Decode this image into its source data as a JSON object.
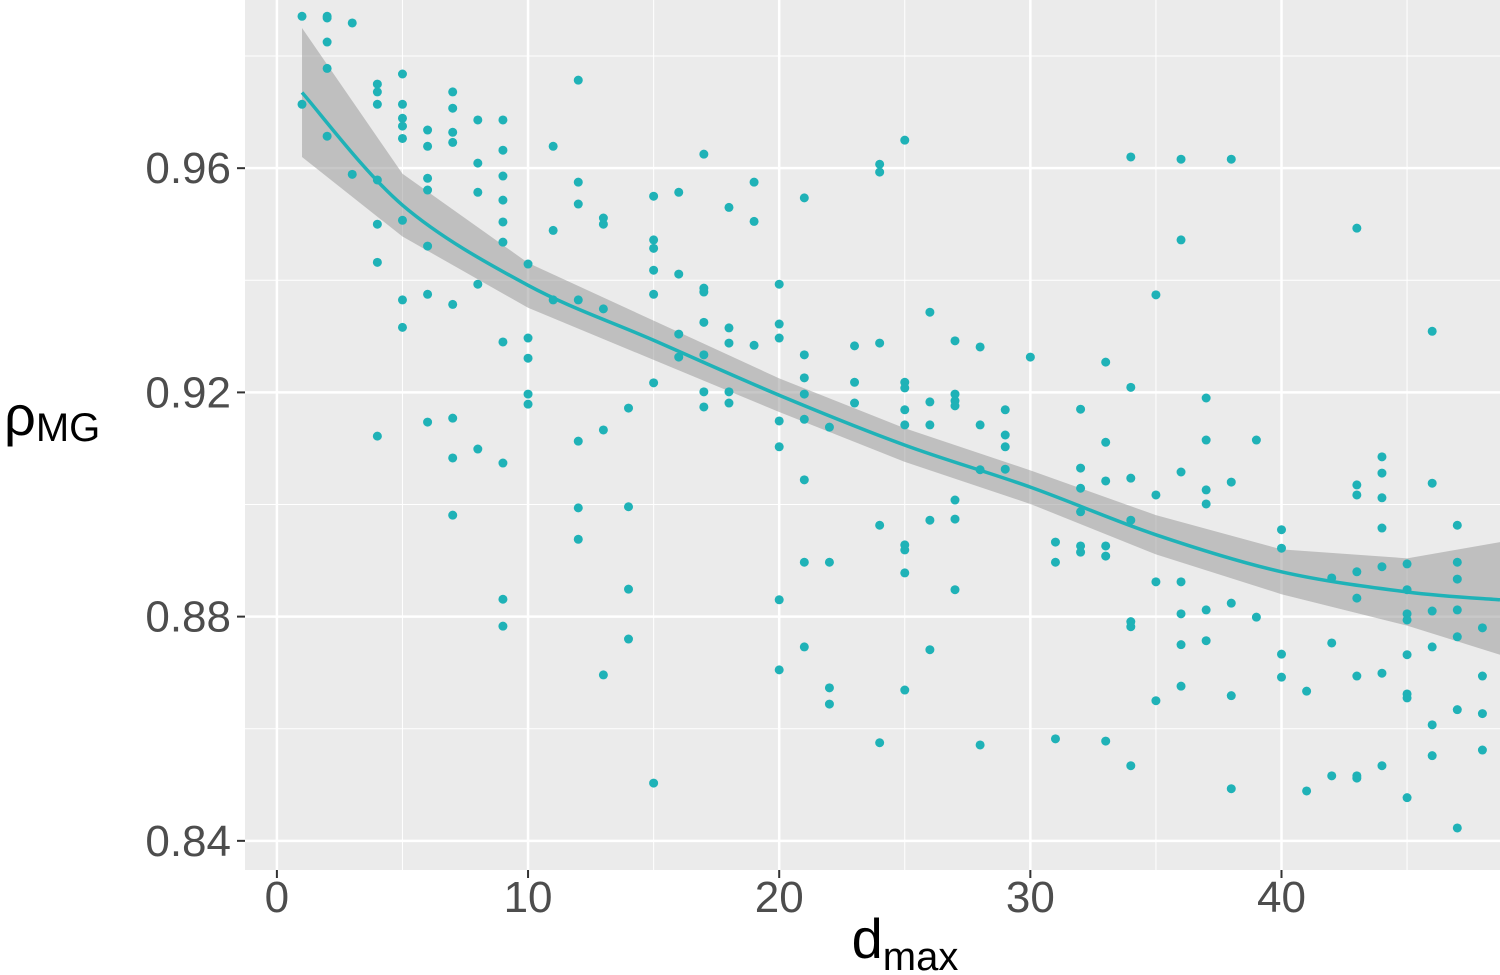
{
  "chart_data": {
    "type": "scatter",
    "x_label": {
      "main": "d",
      "sub": "max"
    },
    "y_label": {
      "main": "ρ",
      "sub": "MG"
    },
    "xlim": [
      -1.27,
      48.7
    ],
    "ylim": [
      0.8348,
      0.99
    ],
    "xticks": [
      0,
      10,
      20,
      30,
      40
    ],
    "yticks": [
      0.84,
      0.88,
      0.92,
      0.96
    ],
    "x_minor_ticks": [
      5,
      15,
      25,
      35,
      45
    ],
    "y_minor_ticks": [
      0.86,
      0.9,
      0.94,
      0.98
    ],
    "grid": true,
    "color": "#1fb2b7",
    "band_color": "#9a9a9a",
    "points": {
      "x": [
        1,
        1,
        2,
        2,
        2,
        2,
        2,
        3,
        3,
        4,
        4,
        4,
        4,
        4,
        4,
        4,
        5,
        5,
        5,
        5,
        5,
        5,
        5,
        5,
        6,
        6,
        6,
        6,
        6,
        6,
        6,
        7,
        7,
        7,
        7,
        7,
        7,
        7,
        7,
        8,
        8,
        8,
        8,
        8,
        9,
        9,
        9,
        9,
        9,
        9,
        9,
        9,
        9,
        9,
        10,
        10,
        10,
        10,
        10,
        11,
        11,
        11,
        12,
        12,
        12,
        12,
        12,
        12,
        12,
        13,
        13,
        13,
        13,
        13,
        14,
        14,
        14,
        14,
        15,
        15,
        15,
        15,
        15,
        15,
        15,
        16,
        16,
        16,
        16,
        17,
        17,
        17,
        17,
        17,
        17,
        17,
        18,
        18,
        18,
        18,
        18,
        19,
        19,
        19,
        20,
        20,
        20,
        20,
        20,
        20,
        20,
        21,
        21,
        21,
        21,
        21,
        21,
        21,
        21,
        22,
        22,
        22,
        22,
        23,
        23,
        23,
        24,
        24,
        24,
        24,
        24,
        25,
        25,
        25,
        25,
        25,
        25,
        25,
        25,
        25,
        26,
        26,
        26,
        26,
        26,
        27,
        27,
        27,
        27,
        27,
        27,
        27,
        28,
        28,
        28,
        28,
        29,
        29,
        29,
        29,
        30,
        31,
        31,
        31,
        32,
        32,
        32,
        32,
        32,
        32,
        33,
        33,
        33,
        33,
        33,
        33,
        34,
        34,
        34,
        34,
        34,
        34,
        34,
        35,
        35,
        35,
        35,
        36,
        36,
        36,
        36,
        36,
        36,
        36,
        37,
        37,
        37,
        37,
        37,
        37,
        38,
        38,
        38,
        38,
        38,
        39,
        39,
        40,
        40,
        40,
        40,
        41,
        41,
        42,
        42,
        42,
        43,
        43,
        43,
        43,
        43,
        43,
        43,
        43,
        44,
        44,
        44,
        44,
        44,
        44,
        44,
        45,
        45,
        45,
        45,
        45,
        45,
        45,
        45,
        46,
        46,
        46,
        46,
        46,
        46,
        47,
        47,
        47,
        47,
        47,
        47,
        47,
        48,
        48,
        48,
        48
      ],
      "values": [
        0.9871,
        0.9714,
        0.9871,
        0.9868,
        0.9825,
        0.9778,
        0.9657,
        0.9859,
        0.9589,
        0.975,
        0.9736,
        0.9714,
        0.9579,
        0.95,
        0.9432,
        0.9122,
        0.9768,
        0.9714,
        0.9689,
        0.9675,
        0.9653,
        0.9507,
        0.9365,
        0.9316,
        0.9668,
        0.9639,
        0.9582,
        0.9561,
        0.9461,
        0.9375,
        0.9147,
        0.9736,
        0.9707,
        0.9664,
        0.9646,
        0.9357,
        0.9154,
        0.9083,
        0.8981,
        0.9686,
        0.9609,
        0.9557,
        0.9393,
        0.9099,
        0.9686,
        0.9632,
        0.9586,
        0.9543,
        0.9504,
        0.9468,
        0.929,
        0.9074,
        0.8831,
        0.8783,
        0.9429,
        0.9297,
        0.9261,
        0.9197,
        0.9179,
        0.9639,
        0.9489,
        0.9365,
        0.9757,
        0.9575,
        0.9536,
        0.9365,
        0.9113,
        0.8994,
        0.8938,
        0.9511,
        0.95,
        0.9349,
        0.9133,
        0.8696,
        0.9172,
        0.8996,
        0.8849,
        0.876,
        0.955,
        0.9472,
        0.9457,
        0.9418,
        0.9375,
        0.9217,
        0.8503,
        0.9557,
        0.9411,
        0.9304,
        0.9263,
        0.9625,
        0.9386,
        0.9379,
        0.9325,
        0.9267,
        0.9201,
        0.9174,
        0.953,
        0.9315,
        0.9288,
        0.9201,
        0.9181,
        0.9575,
        0.9505,
        0.9284,
        0.9393,
        0.9322,
        0.9297,
        0.9149,
        0.9103,
        0.883,
        0.8705,
        0.9547,
        0.9267,
        0.9226,
        0.9197,
        0.9152,
        0.9044,
        0.8897,
        0.8746,
        0.9138,
        0.8897,
        0.8673,
        0.8644,
        0.9283,
        0.9218,
        0.9181,
        0.9607,
        0.9593,
        0.9288,
        0.8963,
        0.8575,
        0.965,
        0.9218,
        0.9208,
        0.9169,
        0.9142,
        0.8928,
        0.8919,
        0.8878,
        0.8669,
        0.9343,
        0.9183,
        0.9142,
        0.8972,
        0.8741,
        0.9292,
        0.9197,
        0.9185,
        0.9176,
        0.9008,
        0.8974,
        0.8848,
        0.9281,
        0.9142,
        0.9062,
        0.8571,
        0.9169,
        0.9124,
        0.9103,
        0.9063,
        0.9263,
        0.8933,
        0.8897,
        0.8582,
        0.917,
        0.9065,
        0.9029,
        0.8987,
        0.8926,
        0.8915,
        0.9254,
        0.9111,
        0.9042,
        0.8926,
        0.8908,
        0.8578,
        0.962,
        0.9209,
        0.9047,
        0.8972,
        0.8791,
        0.8782,
        0.8534,
        0.9374,
        0.9017,
        0.8862,
        0.865,
        0.9616,
        0.9472,
        0.9058,
        0.8862,
        0.8805,
        0.875,
        0.8676,
        0.919,
        0.9115,
        0.9026,
        0.9001,
        0.8812,
        0.8757,
        0.9616,
        0.904,
        0.8824,
        0.8659,
        0.8493,
        0.9115,
        0.8799,
        0.8955,
        0.8922,
        0.8733,
        0.8692,
        0.8667,
        0.8489,
        0.8869,
        0.8753,
        0.8516,
        0.9493,
        0.9035,
        0.9017,
        0.888,
        0.8833,
        0.8694,
        0.8516,
        0.8512,
        0.9085,
        0.9056,
        0.9012,
        0.8958,
        0.8889,
        0.8699,
        0.8534,
        0.8894,
        0.8848,
        0.8805,
        0.8794,
        0.8732,
        0.8662,
        0.8655,
        0.8477,
        0.9309,
        0.9038,
        0.881,
        0.8746,
        0.8607,
        0.8552,
        0.8963,
        0.8897,
        0.8867,
        0.8812,
        0.8764,
        0.8634,
        0.8423,
        0.878,
        0.8694,
        0.8627,
        0.8562
      ]
    },
    "smooth": {
      "x": [
        1,
        5,
        10,
        15,
        20,
        25,
        30,
        35,
        40,
        45,
        48.7
      ],
      "values": [
        0.9735,
        0.9534,
        0.9391,
        0.9293,
        0.9195,
        0.9106,
        0.9031,
        0.8946,
        0.888,
        0.8844,
        0.883
      ],
      "upper": [
        0.985,
        0.959,
        0.9431,
        0.9328,
        0.9225,
        0.9136,
        0.9061,
        0.8981,
        0.892,
        0.8904,
        0.8933
      ],
      "lower": [
        0.962,
        0.9478,
        0.9351,
        0.9258,
        0.9165,
        0.9076,
        0.9001,
        0.8911,
        0.884,
        0.8784,
        0.8732
      ]
    }
  }
}
